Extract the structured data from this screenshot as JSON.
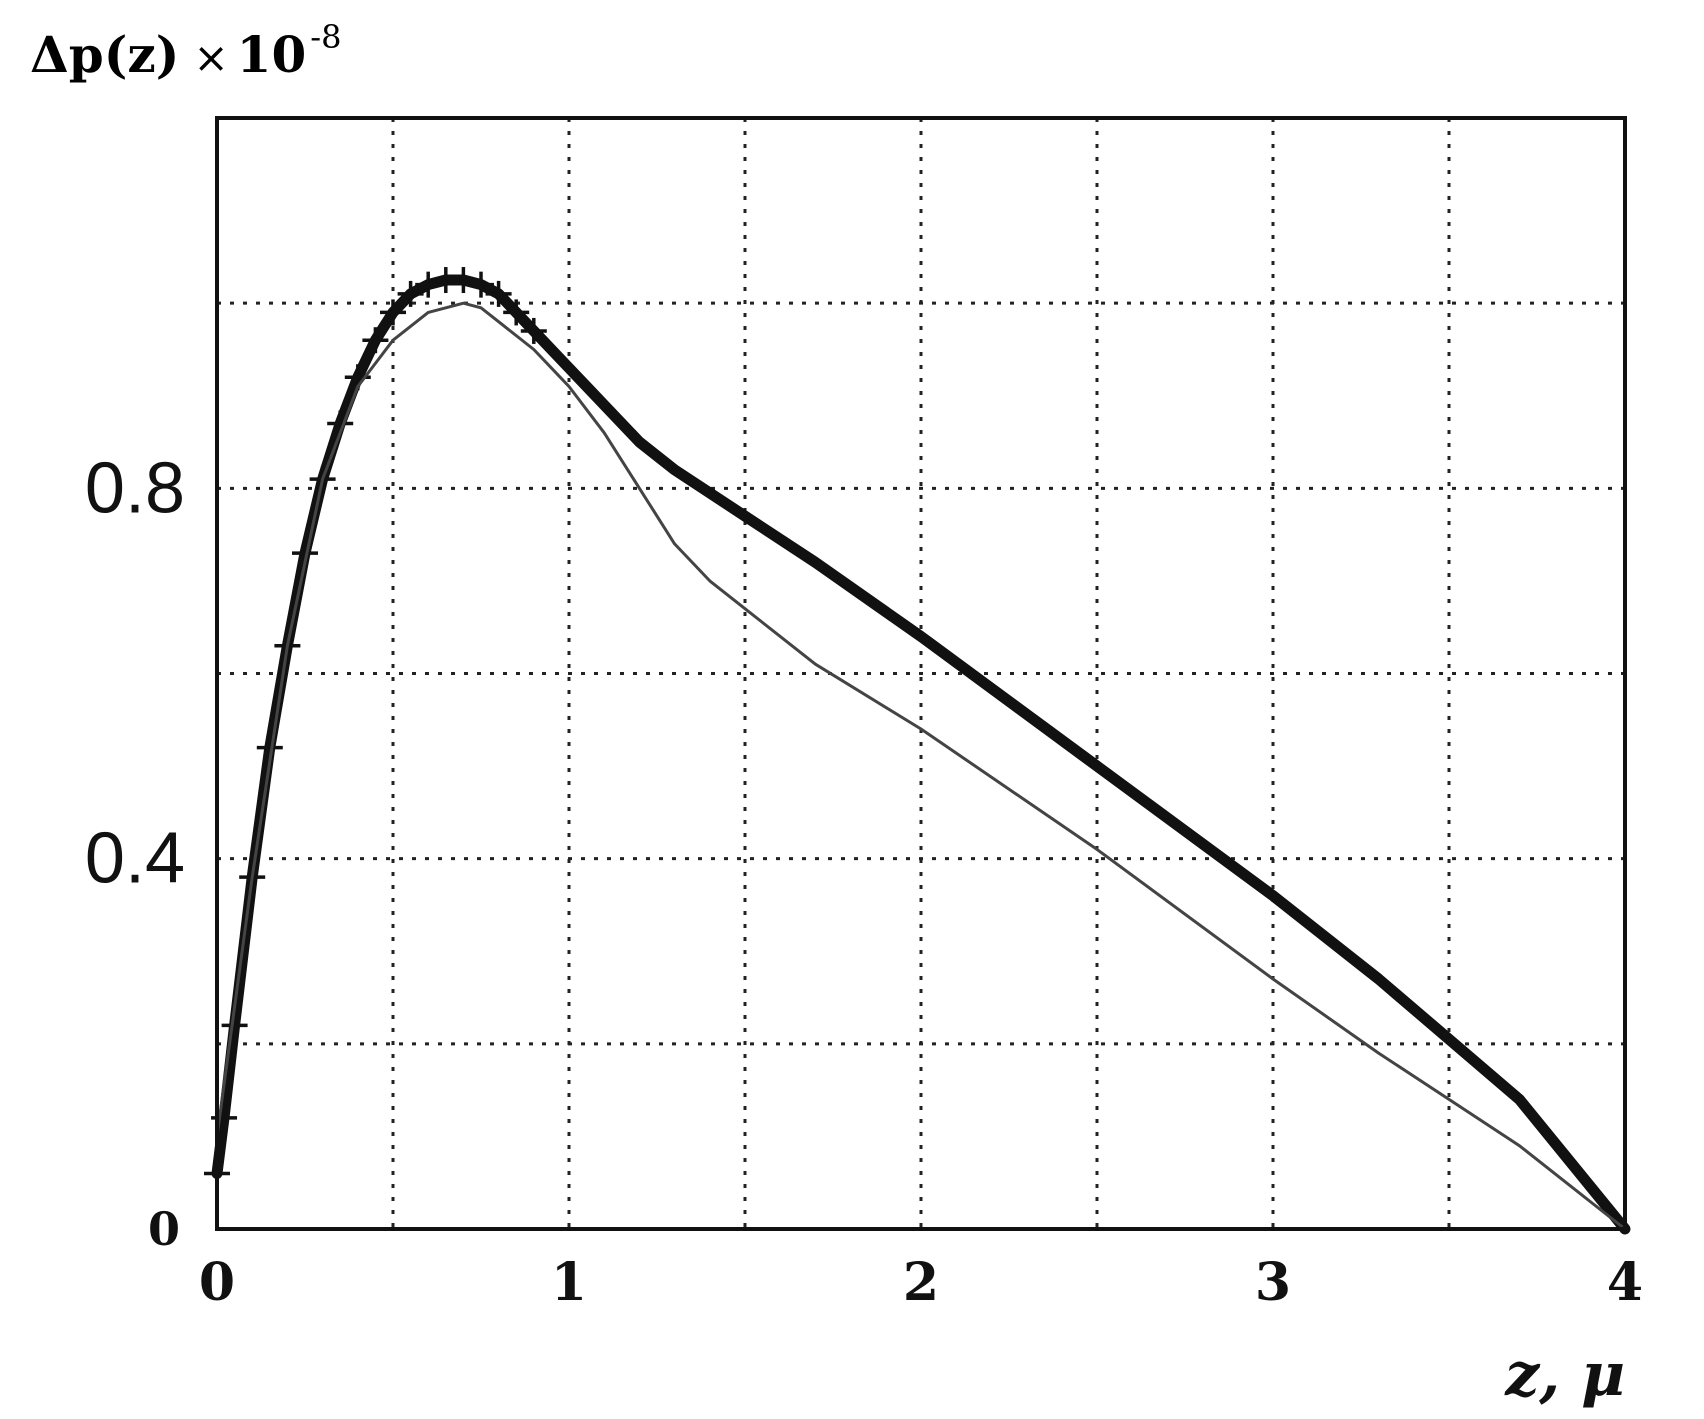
{
  "chart_data": {
    "type": "line",
    "title": "",
    "ylabel": {
      "main": "Δp(z)",
      "times": "×",
      "base": "10",
      "exponent": "-8"
    },
    "xlabel": "z,  μ",
    "xlim": [
      0,
      4
    ],
    "ylim": [
      0,
      1.2
    ],
    "grid": true,
    "xticks": [
      0,
      1,
      2,
      3,
      4
    ],
    "xtick_labels": [
      "0",
      "1",
      "2",
      "3",
      "4"
    ],
    "yticks": [
      0,
      0.4,
      0.8
    ],
    "ytick_labels": [
      "0",
      "0.4",
      "0.8"
    ],
    "grid_x": [
      0.5,
      1,
      1.5,
      2,
      2.5,
      3,
      3.5
    ],
    "grid_y": [
      0.2,
      0.4,
      0.6,
      0.8,
      1.0
    ],
    "series": [
      {
        "style": "thick-with-plus-markers",
        "x": [
          0,
          0.02,
          0.05,
          0.1,
          0.15,
          0.2,
          0.25,
          0.3,
          0.35,
          0.4,
          0.45,
          0.5,
          0.55,
          0.6,
          0.65,
          0.7,
          0.75,
          0.8,
          0.85,
          0.9,
          0.95,
          1.0,
          1.1,
          1.2,
          1.3,
          1.5,
          1.7,
          2.0,
          2.5,
          3.0,
          3.3,
          3.5,
          3.7,
          4.0
        ],
        "y": [
          0.06,
          0.12,
          0.22,
          0.38,
          0.52,
          0.63,
          0.73,
          0.81,
          0.87,
          0.92,
          0.96,
          0.99,
          1.01,
          1.02,
          1.025,
          1.025,
          1.02,
          1.01,
          0.99,
          0.97,
          0.95,
          0.93,
          0.89,
          0.85,
          0.82,
          0.77,
          0.72,
          0.64,
          0.5,
          0.36,
          0.27,
          0.205,
          0.14,
          0.0
        ]
      },
      {
        "style": "thin",
        "x": [
          0,
          0.05,
          0.1,
          0.2,
          0.3,
          0.4,
          0.5,
          0.6,
          0.7,
          0.75,
          0.8,
          0.9,
          1.0,
          1.1,
          1.2,
          1.3,
          1.4,
          1.5,
          1.7,
          2.0,
          2.5,
          3.0,
          3.3,
          3.5,
          3.7,
          4.0
        ],
        "y": [
          0.1,
          0.24,
          0.38,
          0.63,
          0.81,
          0.91,
          0.96,
          0.99,
          1.0,
          0.995,
          0.98,
          0.95,
          0.91,
          0.86,
          0.8,
          0.74,
          0.7,
          0.67,
          0.61,
          0.54,
          0.41,
          0.27,
          0.19,
          0.14,
          0.09,
          0.0
        ]
      }
    ]
  }
}
